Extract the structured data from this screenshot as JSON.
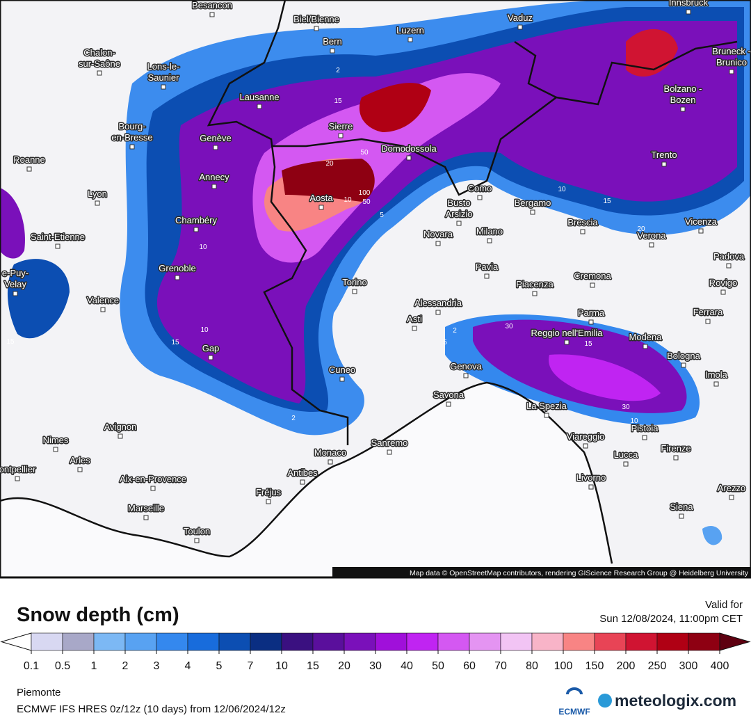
{
  "title": "Snow depth (cm)",
  "valid_label": "Valid for",
  "valid_time": "Sun 12/08/2024, 11:00pm CET",
  "region": "Piemonte",
  "model_line": "ECMWF IFS HRES 0z/12z (10 days) from  12/06/2024/12z",
  "attribution": "Map data © OpenStreetMap contributors, rendering GIScience Research Group @ Heidelberg University",
  "logos": {
    "ecmwf": "ECMWF",
    "brand": "meteologix.com"
  },
  "colorbar": {
    "ticks": [
      0.1,
      0.5,
      1,
      2,
      3,
      4,
      5,
      7,
      10,
      15,
      20,
      30,
      40,
      50,
      60,
      70,
      80,
      100,
      150,
      200,
      250,
      300,
      400
    ],
    "colors": [
      "#d8d8f2",
      "#a8a8c8",
      "#7cb8f4",
      "#58a2f2",
      "#3488ee",
      "#186cdc",
      "#0c4eb2",
      "#0a2e82",
      "#3a1080",
      "#5a0f9c",
      "#7a10ba",
      "#a010da",
      "#c024f2",
      "#d458f2",
      "#e494f2",
      "#f2c4f4",
      "#f8b4c8",
      "#f88484",
      "#e84456",
      "#d01432",
      "#b00014",
      "#8e0012"
    ],
    "under_color": "#ffffff",
    "over_color": "#5e0010"
  },
  "cities": [
    "Besancon",
    "Biel/Bienne",
    "Vaduz",
    "Innsbruck",
    "Bern",
    "Luzern",
    [
      "Bruneck -",
      "Brunico"
    ],
    [
      "Chalon-",
      "sur-Saône"
    ],
    [
      "Lons-le-",
      "Saunier"
    ],
    "Lausanne",
    [
      "Bolzano -",
      "Bozen"
    ],
    "Sierre",
    [
      "Bourg-",
      "en-Bresse"
    ],
    "Genève",
    "Domodossola",
    "Roanne",
    "Trento",
    "Annecy",
    "Lyon",
    "Aosta",
    "Como",
    "Bergamo",
    [
      "Busto",
      "Arsizio"
    ],
    "Chambéry",
    "Brescia",
    "Vicenza",
    "Novara",
    "Milano",
    "Verona",
    "Saint-Etienne",
    "Padova",
    "Grenoble",
    [
      "e-Puy-",
      "Velay"
    ],
    "Pavia",
    "Cremona",
    "Rovigo",
    "Torino",
    "Piacenza",
    "Valence",
    "Alessandria",
    "Ferrara",
    "Parma",
    "Asti",
    "Reggio nell'Emilia",
    "Modena",
    "Gap",
    "Bologna",
    "Genova",
    "Cuneo",
    "Imola",
    "Savona",
    "La Spezia",
    "Avignon",
    "Pistoia",
    "Nimes",
    "Viareggio",
    "Sanremo",
    "Arles",
    "Firenze",
    "Lucca",
    "Monaco",
    "ontpellier",
    "Antibes",
    "Aix-en-Provence",
    "Livorno",
    "Fréjus",
    "Arezzo",
    "Marseille",
    "Siena",
    "Toulon"
  ],
  "contour_labels": [
    "2",
    "15",
    "20",
    "50",
    "100",
    "50",
    "10",
    "5",
    "10",
    "15",
    "10",
    "15",
    "2",
    "5",
    "2",
    "30",
    "15",
    "30",
    "10",
    "10",
    "15",
    "20"
  ]
}
